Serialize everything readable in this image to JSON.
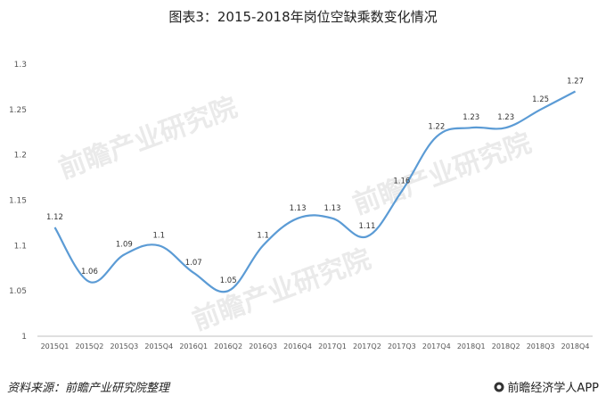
{
  "title": "图表3：2015-2018年岗位空缺乘数变化情况",
  "source_label": "资料来源：",
  "source_text": "前瞻产业研究院整理",
  "brand": "前瞻经济学人APP",
  "watermark": "前瞻产业研究院",
  "chart_data": {
    "type": "line",
    "categories": [
      "2015Q1",
      "2015Q2",
      "2015Q3",
      "2015Q4",
      "2016Q1",
      "2016Q2",
      "2016Q3",
      "2016Q4",
      "2017Q1",
      "2017Q2",
      "2017Q3",
      "2017Q4",
      "2018Q1",
      "2018Q2",
      "2018Q3",
      "2018Q4"
    ],
    "series": [
      {
        "values": [
          1.12,
          1.06,
          1.09,
          1.1,
          1.07,
          1.05,
          1.1,
          1.13,
          1.13,
          1.11,
          1.16,
          1.22,
          1.23,
          1.23,
          1.25,
          1.27
        ]
      }
    ],
    "data_labels": [
      "1.12",
      "1.06",
      "1.09",
      "1.1",
      "1.07",
      "1.05",
      "1.1",
      "1.13",
      "1.13",
      "1.11",
      "1.16",
      "1.22",
      "1.23",
      "1.23",
      "1.25",
      "1.27"
    ],
    "y_ticks": [
      "1",
      "1.05",
      "1.1",
      "1.15",
      "1.2",
      "1.25",
      "1.3"
    ],
    "ylim": [
      1,
      1.3
    ],
    "grid": false,
    "line_color": "#5b9bd5"
  }
}
